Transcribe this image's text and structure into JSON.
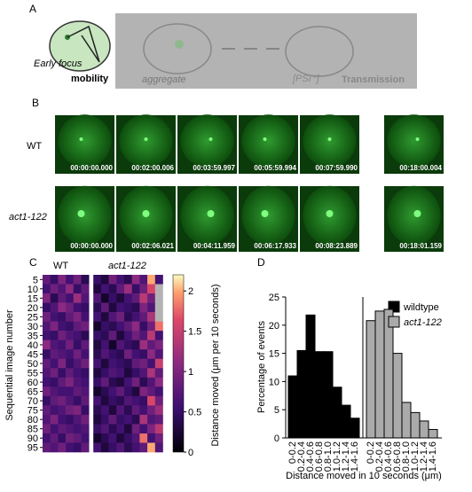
{
  "panel_a": {
    "letter": "A",
    "early_focus": "Early focus",
    "mobility": "mobility",
    "aggregate": "aggregate",
    "psi": "[PSI⁺]",
    "transmission": "Transmission"
  },
  "panel_b": {
    "letter": "B",
    "rows": [
      {
        "label": "WT",
        "times": [
          "00:00:00.000",
          "00:02:00.006",
          "00:03:59.997",
          "00:05:59.994",
          "00:07:59.990",
          "00:18:00.004"
        ]
      },
      {
        "label": "act1-122",
        "times": [
          "00:00:00.000",
          "00:02:06.021",
          "00:04:11.959",
          "00:06:17.933",
          "00:08:23.889",
          "00:18:01.159"
        ]
      }
    ]
  },
  "panel_c": {
    "letter": "C",
    "type": "heatmap",
    "groups": [
      "WT",
      "act1-122"
    ],
    "group_sizes": [
      6,
      9
    ],
    "y_label": "Sequential image number",
    "y_labels": [
      5,
      10,
      15,
      20,
      25,
      30,
      35,
      40,
      45,
      50,
      55,
      60,
      65,
      70,
      75,
      80,
      85,
      90,
      95
    ],
    "colorbar_label": "Distance moved (μm per 10 seconds)",
    "colorbar_lim": [
      0,
      2.2
    ],
    "colorbar_ticks": [
      0,
      0.5,
      1,
      1.5,
      2
    ],
    "values": [
      [
        0.8,
        0.5,
        1.0,
        0.6,
        0.9,
        0.4,
        0.5,
        0.3,
        0.9,
        0.6,
        0.4,
        1.1,
        0.7,
        2.0,
        0.6
      ],
      [
        0.6,
        0.9,
        0.7,
        1.1,
        0.5,
        0.8,
        0.3,
        0.6,
        0.4,
        0.8,
        1.2,
        0.5,
        0.9,
        1.6,
        null
      ],
      [
        1.0,
        0.4,
        0.8,
        0.6,
        1.2,
        0.7,
        0.7,
        0.2,
        0.5,
        0.3,
        0.6,
        0.8,
        1.4,
        0.9,
        null
      ],
      [
        0.5,
        0.7,
        1.1,
        0.9,
        0.6,
        0.5,
        0.4,
        0.8,
        0.3,
        0.6,
        0.5,
        0.4,
        1.0,
        0.7,
        null
      ],
      [
        0.9,
        0.6,
        0.5,
        0.8,
        1.0,
        0.6,
        0.6,
        0.3,
        0.7,
        0.9,
        0.4,
        0.6,
        0.8,
        1.3,
        null
      ],
      [
        0.7,
        1.0,
        0.6,
        0.5,
        0.8,
        0.9,
        0.2,
        0.5,
        0.4,
        0.6,
        0.8,
        1.1,
        0.5,
        0.9,
        1.8
      ],
      [
        0.6,
        0.5,
        0.9,
        0.7,
        0.6,
        0.4,
        0.5,
        0.4,
        0.8,
        0.3,
        0.6,
        0.9,
        0.7,
        1.4,
        0.6
      ],
      [
        1.1,
        0.7,
        0.6,
        0.9,
        0.5,
        0.8,
        0.3,
        0.6,
        0.2,
        0.7,
        0.5,
        0.4,
        1.2,
        0.8,
        1.0
      ],
      [
        0.5,
        0.8,
        0.7,
        0.6,
        0.9,
        0.6,
        0.4,
        0.7,
        0.5,
        0.4,
        0.9,
        0.6,
        0.5,
        1.1,
        0.7
      ],
      [
        0.8,
        0.6,
        1.0,
        0.5,
        0.7,
        0.9,
        0.6,
        0.3,
        0.6,
        0.5,
        0.4,
        0.8,
        0.9,
        0.6,
        1.5
      ],
      [
        0.7,
        0.9,
        0.5,
        0.8,
        0.6,
        0.5,
        0.3,
        0.5,
        0.7,
        0.6,
        0.3,
        0.5,
        0.7,
        1.3,
        0.8
      ],
      [
        0.6,
        0.5,
        0.8,
        1.0,
        0.7,
        0.6,
        0.5,
        0.8,
        0.4,
        0.3,
        0.6,
        0.9,
        0.4,
        0.7,
        1.1
      ],
      [
        0.9,
        0.7,
        0.6,
        0.6,
        0.8,
        0.7,
        0.2,
        0.4,
        0.6,
        0.8,
        0.5,
        0.3,
        1.0,
        0.8,
        0.6
      ],
      [
        0.5,
        0.8,
        0.9,
        0.7,
        0.5,
        0.8,
        0.6,
        0.3,
        0.5,
        0.4,
        0.7,
        0.6,
        0.5,
        1.6,
        0.9
      ],
      [
        0.8,
        0.6,
        0.7,
        0.9,
        1.0,
        0.5,
        0.4,
        0.6,
        0.3,
        0.7,
        0.4,
        0.8,
        0.6,
        0.9,
        1.2
      ],
      [
        0.7,
        1.0,
        0.6,
        0.5,
        0.7,
        0.9,
        0.3,
        0.5,
        0.8,
        0.5,
        0.6,
        0.4,
        1.3,
        0.7,
        0.8
      ],
      [
        0.9,
        0.6,
        0.8,
        0.7,
        0.6,
        0.7,
        0.5,
        0.7,
        0.4,
        0.6,
        0.3,
        0.9,
        0.6,
        1.0,
        1.4
      ],
      [
        0.6,
        0.8,
        0.5,
        0.9,
        0.8,
        0.6,
        0.2,
        0.4,
        0.6,
        0.3,
        0.5,
        0.7,
        1.8,
        0.6,
        0.9
      ],
      [
        0.8,
        0.7,
        0.9,
        0.6,
        0.5,
        0.8,
        0.6,
        0.3,
        0.5,
        0.7,
        0.4,
        0.6,
        0.8,
        2.0,
        0.7
      ]
    ]
  },
  "panel_d": {
    "letter": "D",
    "type": "bar",
    "y_label": "Percentage of events",
    "x_label": "Distance moved in 10 seconds (μm)",
    "categories": [
      "0-0.2",
      "0.2-0.4",
      "0.4-0.6",
      "0.6-0.8",
      "0.8-1.0",
      "1.0-1.2",
      "1.2-1.4",
      "1.4-1.6"
    ],
    "series": [
      {
        "name": "wildtype",
        "color": "#000000",
        "values": [
          11,
          15.5,
          21.8,
          15.3,
          15.3,
          9,
          5.8,
          3.5
        ]
      },
      {
        "name": "act1-122",
        "color": "#aaaaaa",
        "values": [
          20.8,
          22.5,
          22.8,
          15,
          6.3,
          4.5,
          3,
          1.5
        ]
      }
    ],
    "ylim": [
      0,
      25
    ],
    "yticks": [
      0,
      5,
      10,
      15,
      20,
      25
    ]
  }
}
